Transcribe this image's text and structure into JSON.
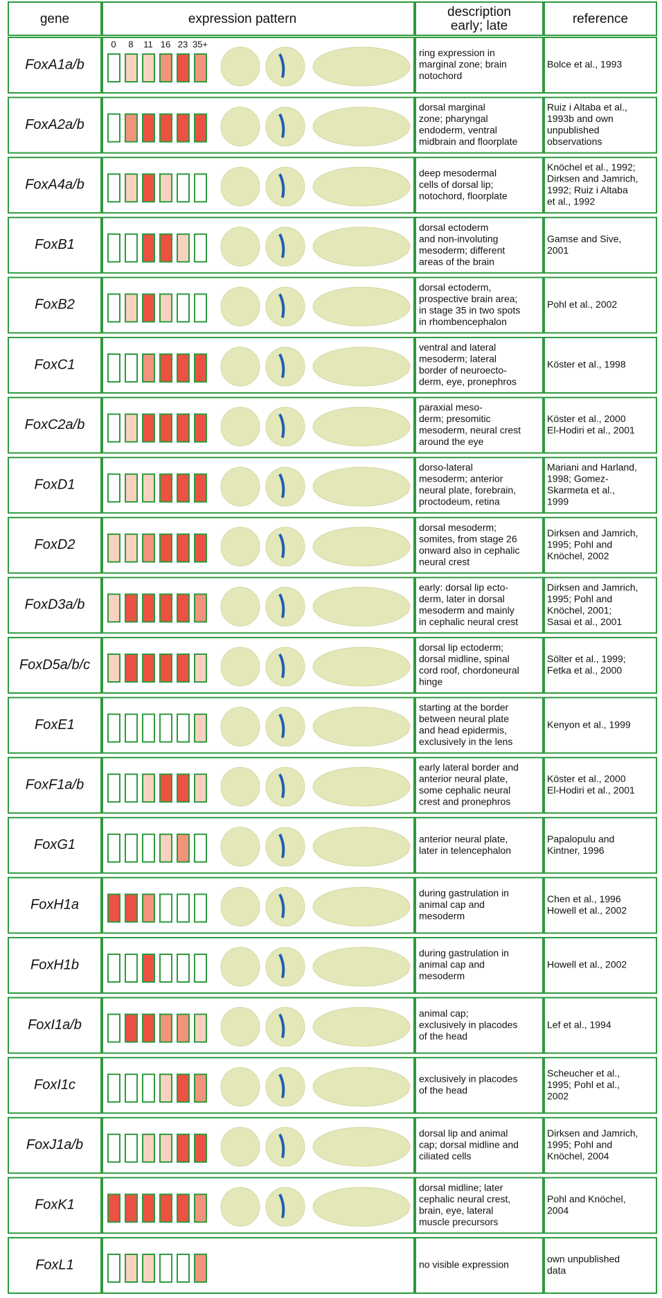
{
  "header": {
    "gene": "gene",
    "expression": "expression pattern",
    "description": [
      "description",
      "early; late"
    ],
    "reference": "reference"
  },
  "stages": [
    "0",
    "8",
    "11",
    "16",
    "23",
    "35+"
  ],
  "level_colors": [
    "#ffffff",
    "#f8d2bf",
    "#f2937b",
    "#ec5242"
  ],
  "rows": [
    {
      "gene": "FoxA1a/b",
      "levels": [
        0,
        1,
        1,
        2,
        3,
        2
      ],
      "description": [
        "ring expression in",
        "marginal zone; brain",
        "notochord"
      ],
      "reference": [
        "Bolce et al., 1993"
      ]
    },
    {
      "gene": "FoxA2a/b",
      "levels": [
        0,
        2,
        3,
        3,
        3,
        3
      ],
      "description": [
        "dorsal marginal",
        "zone; pharyngal",
        "endoderm, ventral",
        "midbrain and floorplate"
      ],
      "reference": [
        "Ruiz i Altaba et al.,",
        "1993b and own",
        "unpublished",
        "observations"
      ]
    },
    {
      "gene": "FoxA4a/b",
      "levels": [
        0,
        1,
        3,
        1,
        0,
        0
      ],
      "description": [
        "deep mesodermal",
        "cells of dorsal lip;",
        "notochord, floorplate"
      ],
      "reference": [
        "Knöchel et al., 1992;",
        "Dirksen and Jamrich,",
        "1992; Ruiz i Altaba",
        "et al., 1992"
      ]
    },
    {
      "gene": "FoxB1",
      "levels": [
        0,
        0,
        3,
        3,
        1,
        0
      ],
      "description": [
        "dorsal ectoderm",
        "and non-involuting",
        "mesoderm; different",
        "areas of the brain"
      ],
      "reference": [
        "Gamse and Sive,",
        "2001"
      ]
    },
    {
      "gene": "FoxB2",
      "levels": [
        0,
        1,
        3,
        1,
        0,
        0
      ],
      "description": [
        "dorsal ectoderm,",
        "prospective brain area;",
        "in stage 35 in two spots",
        "in rhombencephalon"
      ],
      "reference": [
        "Pohl et al., 2002"
      ]
    },
    {
      "gene": "FoxC1",
      "levels": [
        0,
        0,
        2,
        3,
        3,
        3
      ],
      "description": [
        "ventral and lateral",
        "mesoderm; lateral",
        "border of neuroecto-",
        "derm, eye, pronephros"
      ],
      "reference": [
        "Köster et al., 1998"
      ]
    },
    {
      "gene": "FoxC2a/b",
      "levels": [
        0,
        1,
        3,
        3,
        3,
        3
      ],
      "description": [
        "paraxial meso-",
        "derm; presomitic",
        "mesoderm, neural crest",
        "around the eye"
      ],
      "reference": [
        "Köster et al., 2000",
        "El-Hodiri et al., 2001"
      ]
    },
    {
      "gene": "FoxD1",
      "levels": [
        0,
        1,
        1,
        3,
        3,
        3
      ],
      "description": [
        "dorso-lateral",
        "mesoderm; anterior",
        "neural plate, forebrain,",
        "proctodeum, retina"
      ],
      "reference": [
        "Mariani and Harland,",
        "1998; Gomez-",
        "Skarmeta et al.,",
        "1999"
      ]
    },
    {
      "gene": "FoxD2",
      "levels": [
        1,
        1,
        2,
        3,
        3,
        3
      ],
      "description": [
        "dorsal mesoderm;",
        "somites, from stage 26",
        "onward also in cephalic",
        "neural crest"
      ],
      "reference": [
        "Dirksen and Jamrich,",
        "1995; Pohl and",
        "Knöchel, 2002"
      ]
    },
    {
      "gene": "FoxD3a/b",
      "levels": [
        1,
        3,
        3,
        3,
        3,
        2
      ],
      "description": [
        "early: dorsal lip ecto-",
        "derm, later in dorsal",
        "mesoderm and mainly",
        "in cephalic neural crest"
      ],
      "reference": [
        "Dirksen and Jamrich,",
        "1995; Pohl and",
        "Knöchel, 2001;",
        "Sasai et al., 2001"
      ]
    },
    {
      "gene": "FoxD5a/b/c",
      "levels": [
        1,
        3,
        3,
        3,
        3,
        1
      ],
      "description": [
        "dorsal lip ectoderm;",
        "dorsal midline, spinal",
        "cord roof, chordoneural",
        "hinge"
      ],
      "reference": [
        "Sölter et al., 1999;",
        "Fetka et al., 2000"
      ]
    },
    {
      "gene": "FoxE1",
      "levels": [
        0,
        0,
        0,
        0,
        0,
        1
      ],
      "description": [
        "starting at the border",
        "between neural plate",
        "and head epidermis,",
        "exclusively in the lens"
      ],
      "reference": [
        "Kenyon et al., 1999"
      ]
    },
    {
      "gene": "FoxF1a/b",
      "levels": [
        0,
        0,
        1,
        3,
        3,
        1
      ],
      "description": [
        "early lateral border and",
        "anterior neural plate,",
        "some cephalic neural",
        "crest and pronephros"
      ],
      "reference": [
        "Köster et al., 2000",
        "El-Hodiri et al., 2001"
      ]
    },
    {
      "gene": "FoxG1",
      "levels": [
        0,
        0,
        0,
        1,
        2,
        0
      ],
      "description": [
        "anterior neural plate,",
        "later in telencephalon"
      ],
      "reference": [
        "Papalopulu and",
        "Kintner, 1996"
      ]
    },
    {
      "gene": "FoxH1a",
      "levels": [
        3,
        3,
        2,
        0,
        0,
        0
      ],
      "description": [
        "during gastrulation in",
        "animal cap and",
        "mesoderm"
      ],
      "reference": [
        "Chen et al., 1996",
        "Howell et al., 2002"
      ]
    },
    {
      "gene": "FoxH1b",
      "levels": [
        0,
        0,
        3,
        0,
        0,
        0
      ],
      "description": [
        "during gastrulation in",
        "animal cap and",
        "mesoderm"
      ],
      "reference": [
        "Howell et al., 2002"
      ]
    },
    {
      "gene": "FoxI1a/b",
      "levels": [
        0,
        3,
        3,
        2,
        2,
        1
      ],
      "description": [
        "animal cap;",
        "exclusively in placodes",
        "of the head"
      ],
      "reference": [
        "Lef et al., 1994"
      ]
    },
    {
      "gene": "FoxI1c",
      "levels": [
        0,
        0,
        0,
        1,
        3,
        2
      ],
      "description": [
        "exclusively in placodes",
        "of the head"
      ],
      "reference": [
        "Scheucher et al.,",
        "1995; Pohl et al.,",
        "2002"
      ]
    },
    {
      "gene": "FoxJ1a/b",
      "levels": [
        0,
        0,
        1,
        1,
        3,
        3
      ],
      "description": [
        "dorsal lip and animal",
        "cap; dorsal midline and",
        "ciliated cells"
      ],
      "reference": [
        "Dirksen and Jamrich,",
        "1995; Pohl and",
        "Knöchel, 2004"
      ]
    },
    {
      "gene": "FoxK1",
      "levels": [
        3,
        3,
        3,
        3,
        3,
        2
      ],
      "description": [
        "dorsal midline; later",
        "cephalic neural crest,",
        "brain, eye, lateral",
        "muscle precursors"
      ],
      "reference": [
        "Pohl and Knöchel,",
        "2004"
      ]
    },
    {
      "gene": "FoxL1",
      "levels": [
        0,
        1,
        1,
        0,
        0,
        2
      ],
      "description": [
        "no visible expression"
      ],
      "reference": [
        "own unpublished",
        "data"
      ]
    }
  ]
}
